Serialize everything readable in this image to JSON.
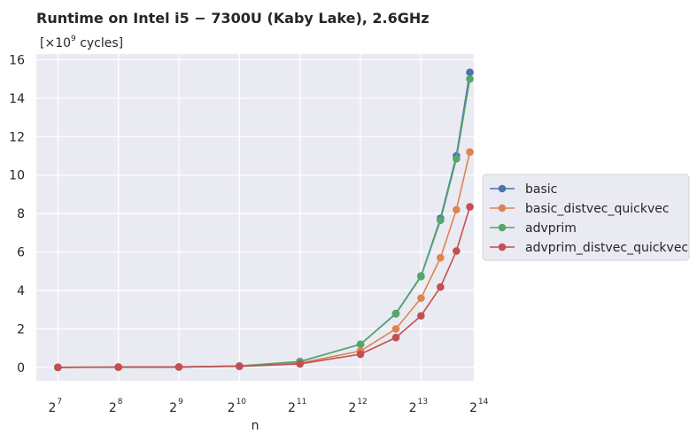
{
  "chart_data": {
    "type": "line",
    "title": "Runtime on Intel i5 − 7300U (Kaby Lake),  2.6GHz",
    "unit_label": "[×10^9 cycles]",
    "unit_prefix": "[×10",
    "unit_exp": "9",
    "unit_suffix": " cycles]",
    "xlabel": "n",
    "ylabel": "",
    "xscale": "log2",
    "xlim": [
      100,
      15000
    ],
    "ylim": [
      -0.7,
      16.3
    ],
    "x_ticks": [
      {
        "base": "2",
        "exp": "7",
        "value": 128
      },
      {
        "base": "2",
        "exp": "8",
        "value": 256
      },
      {
        "base": "2",
        "exp": "9",
        "value": 512
      },
      {
        "base": "2",
        "exp": "10",
        "value": 1024
      },
      {
        "base": "2",
        "exp": "11",
        "value": 2048
      },
      {
        "base": "2",
        "exp": "12",
        "value": 4096
      },
      {
        "base": "2",
        "exp": "13",
        "value": 8192
      },
      {
        "base": "2",
        "exp": "14",
        "value": 16384
      }
    ],
    "y_ticks": [
      0,
      2,
      4,
      6,
      8,
      10,
      12,
      14,
      16
    ],
    "x": [
      128,
      256,
      512,
      1024,
      2048,
      4096,
      6144,
      8192,
      10240,
      12288,
      14336
    ],
    "series": [
      {
        "name": "basic",
        "color": "#4c72b0",
        "values": [
          0.0,
          0.01,
          0.02,
          0.07,
          0.3,
          1.2,
          2.8,
          4.75,
          7.75,
          11.0,
          15.35
        ]
      },
      {
        "name": "basic_distvec_quickvec",
        "color": "#dd8452",
        "values": [
          0.0,
          0.01,
          0.02,
          0.06,
          0.22,
          0.85,
          2.0,
          3.6,
          5.7,
          8.2,
          11.2
        ]
      },
      {
        "name": "advprim",
        "color": "#55a868",
        "values": [
          0.0,
          0.01,
          0.02,
          0.07,
          0.3,
          1.2,
          2.78,
          4.72,
          7.65,
          10.85,
          15.0
        ]
      },
      {
        "name": "advprim_distvec_quickvec",
        "color": "#c44e52",
        "values": [
          0.0,
          0.01,
          0.02,
          0.05,
          0.18,
          0.68,
          1.55,
          2.68,
          4.18,
          6.05,
          8.35
        ]
      }
    ],
    "grid": true,
    "legend_position": "right-outside"
  }
}
